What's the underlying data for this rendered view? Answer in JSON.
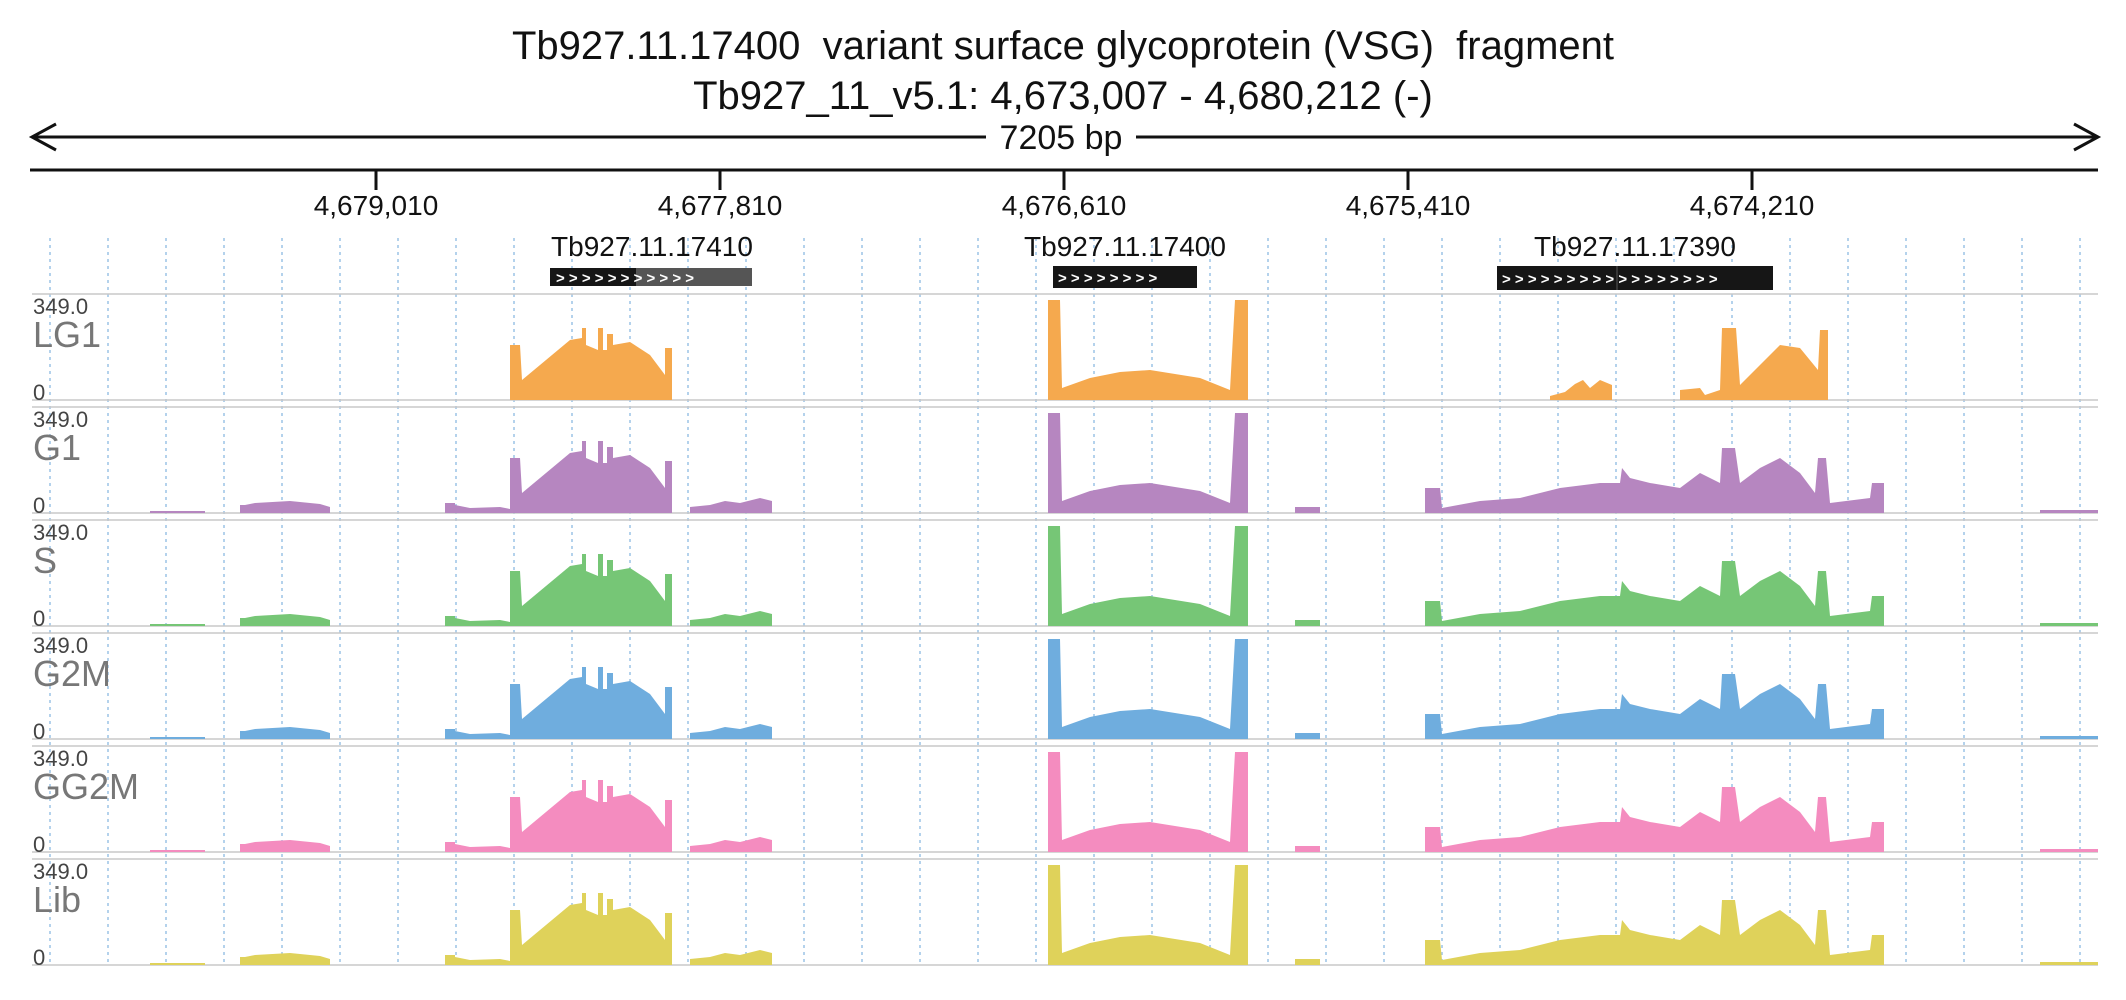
{
  "header": {
    "title": "Tb927.11.17400  variant surface glycoprotein (VSG)  fragment",
    "location": "Tb927_11_v5.1: 4,673,007 - 4,680,212 (-)",
    "span_label": "7205 bp"
  },
  "ruler": {
    "ticks": [
      "4,679,010",
      "4,677,810",
      "4,676,610",
      "4,675,410",
      "4,674,210"
    ]
  },
  "genes": [
    {
      "name": "Tb927.11.17410",
      "label": "Tb927.11.17410",
      "strand_glyphs": "> > > > >  > > > > > >"
    },
    {
      "name": "Tb927.11.17400",
      "label": "Tb927.11.17400",
      "strand_glyphs": "> > > > > > > >"
    },
    {
      "name": "Tb927.11.17390",
      "label": "Tb927.11.17390",
      "strand_glyphs": "> > > > > > > > > > > > > > > > >"
    }
  ],
  "tracks": [
    {
      "name": "LG1",
      "max": "349.0",
      "min": "0",
      "color": "#f5a94e"
    },
    {
      "name": "G1",
      "max": "349.0",
      "min": "0",
      "color": "#b686c0"
    },
    {
      "name": "S",
      "max": "349.0",
      "min": "0",
      "color": "#76c676"
    },
    {
      "name": "G2M",
      "max": "349.0",
      "min": "0",
      "color": "#6fadde"
    },
    {
      "name": "GG2M",
      "max": "349.0",
      "min": "0",
      "color": "#f48cbf"
    },
    {
      "name": "Lib",
      "max": "349.0",
      "min": "0",
      "color": "#dfd25a"
    }
  ]
}
